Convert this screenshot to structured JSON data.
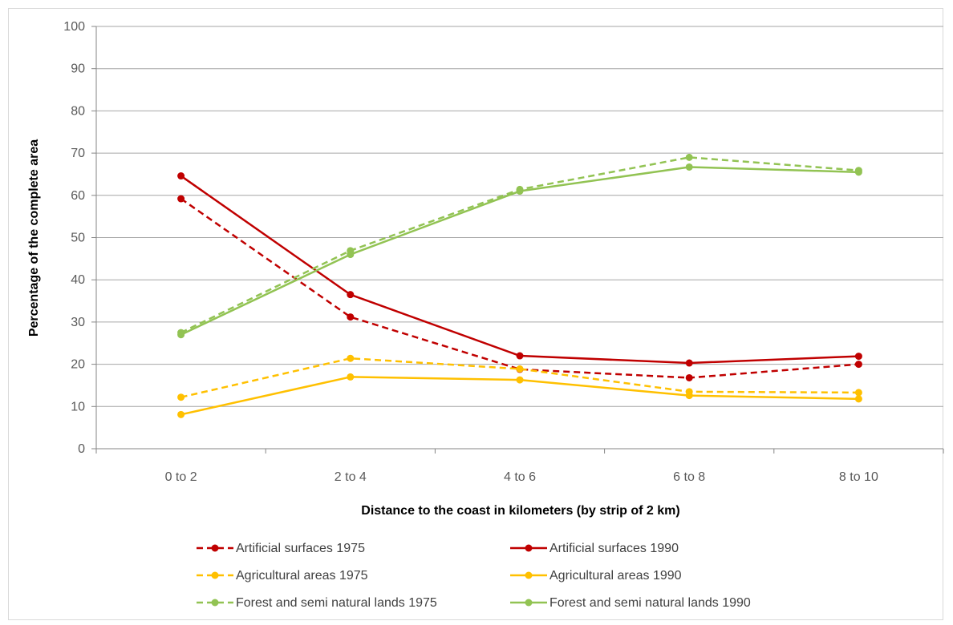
{
  "chart_data": {
    "type": "line",
    "title": "",
    "xlabel": "Distance to the coast in kilometers (by strip of 2 km)",
    "ylabel": "Percentage of the complete area",
    "categories": [
      "0 to 2",
      "2 to 4",
      "4 to 6",
      "6 to 8",
      "8 to 10"
    ],
    "ylim": [
      0,
      100
    ],
    "yticks": [
      0,
      10,
      20,
      30,
      40,
      50,
      60,
      70,
      80,
      90,
      100
    ],
    "grid": true,
    "legend_position": "bottom",
    "series": [
      {
        "name": "Artificial surfaces 1975",
        "color": "#c00000",
        "dashed": true,
        "values": [
          59.2,
          31.2,
          18.8,
          16.8,
          20.0
        ]
      },
      {
        "name": "Artificial surfaces 1990",
        "color": "#c00000",
        "dashed": false,
        "values": [
          64.6,
          36.5,
          22.0,
          20.3,
          21.9
        ]
      },
      {
        "name": "Agricultural areas 1975",
        "color": "#ffc000",
        "dashed": true,
        "values": [
          12.2,
          21.4,
          18.9,
          13.5,
          13.3
        ]
      },
      {
        "name": "Agricultural areas 1990",
        "color": "#ffc000",
        "dashed": false,
        "values": [
          8.1,
          17.0,
          16.3,
          12.6,
          11.8
        ]
      },
      {
        "name": "Forest and semi natural lands 1975",
        "color": "#92c353",
        "dashed": true,
        "values": [
          27.5,
          46.9,
          61.4,
          69.0,
          65.9
        ]
      },
      {
        "name": "Forest and semi natural lands 1990",
        "color": "#92c353",
        "dashed": false,
        "values": [
          27.0,
          46.0,
          61.0,
          66.7,
          65.5
        ]
      }
    ]
  }
}
